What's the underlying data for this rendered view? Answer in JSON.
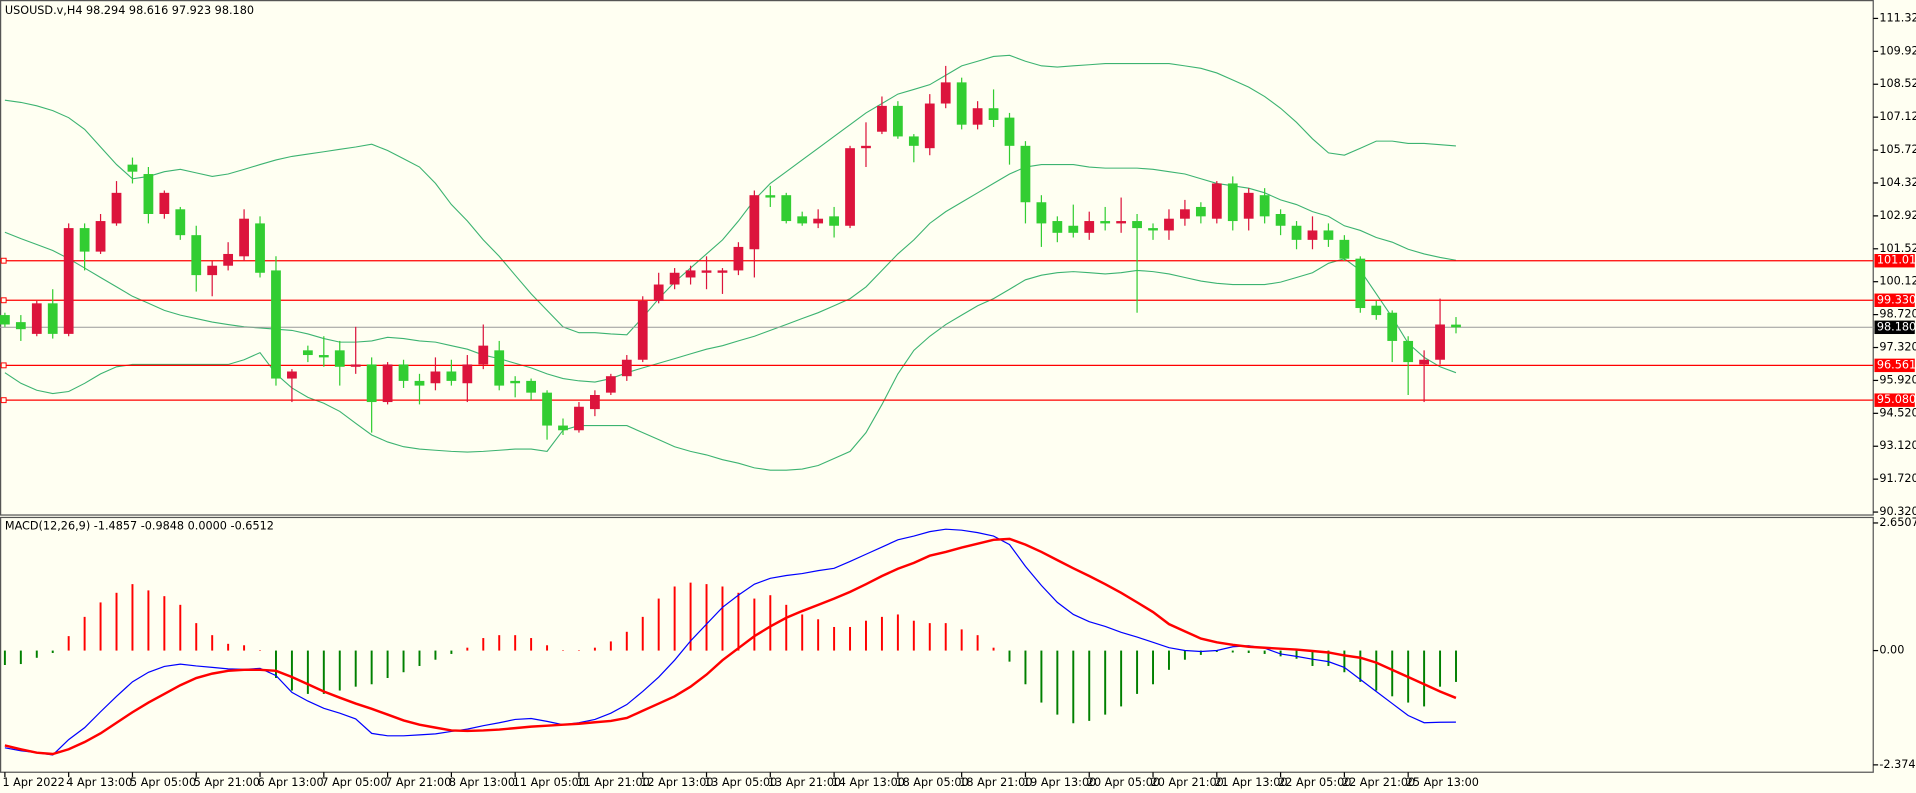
{
  "chart_data": [
    {
      "type": "candlestick",
      "title": "USOUSD.v,H4 98.294 98.616 97.923 98.180",
      "categories": [
        "1 Apr 2022",
        null,
        null,
        null,
        "4 Apr 13:00",
        null,
        null,
        null,
        "5 Apr 05:00",
        null,
        null,
        null,
        "5 Apr 21:00",
        null,
        null,
        null,
        "6 Apr 13:00",
        null,
        null,
        null,
        "7 Apr 05:00",
        null,
        null,
        null,
        "7 Apr 21:00",
        null,
        null,
        null,
        "8 Apr 13:00",
        null,
        null,
        null,
        "11 Apr 05:00",
        null,
        null,
        null,
        "11 Apr 21:00",
        null,
        null,
        null,
        "12 Apr 13:00",
        null,
        null,
        null,
        "13 Apr 05:00",
        null,
        null,
        null,
        "13 Apr 21:00",
        null,
        null,
        null,
        "14 Apr 13:00",
        null,
        null,
        null,
        "18 Apr 05:00",
        null,
        null,
        null,
        "18 Apr 21:00",
        null,
        null,
        null,
        "19 Apr 13:00",
        null,
        null,
        null,
        "20 Apr 05:00",
        null,
        null,
        null,
        "20 Apr 21:00",
        null,
        null,
        null,
        "21 Apr 13:00",
        null,
        null,
        null,
        "22 Apr 05:00",
        null,
        null,
        null,
        "22 Apr 21:00",
        null,
        null,
        null,
        "25 Apr 13:00",
        null,
        null,
        null
      ],
      "open": [
        98.7,
        98.4,
        97.9,
        99.2,
        97.9,
        102.4,
        101.4,
        102.6,
        105.1,
        104.7,
        103.0,
        103.2,
        102.1,
        100.4,
        100.8,
        101.2,
        102.6,
        100.6,
        96.0,
        97.2,
        97.0,
        97.2,
        96.5,
        96.6,
        95.0,
        96.6,
        95.9,
        95.8,
        96.3,
        95.8,
        96.6,
        97.2,
        95.9,
        95.9,
        95.4,
        94.0,
        93.8,
        94.7,
        95.4,
        96.1,
        96.8,
        99.3,
        100.0,
        100.3,
        100.5,
        100.5,
        100.6,
        101.5,
        103.8,
        103.8,
        102.9,
        102.6,
        102.9,
        102.5,
        105.8,
        106.5,
        107.6,
        106.3,
        105.8,
        107.7,
        108.6,
        106.8,
        107.5,
        107.1,
        105.9,
        103.5,
        102.7,
        102.5,
        102.2,
        102.7,
        102.6,
        102.7,
        102.4,
        102.3,
        102.8,
        103.3,
        102.8,
        104.3,
        102.8,
        103.8,
        103.0,
        102.5,
        101.9,
        102.3,
        101.9,
        101.1,
        99.1,
        98.8,
        97.6,
        96.6,
        96.8,
        98.294
      ],
      "high": [
        98.8,
        98.7,
        99.3,
        99.8,
        102.6,
        102.6,
        103.0,
        104.4,
        105.4,
        105.0,
        104.0,
        103.3,
        102.5,
        101.0,
        101.8,
        103.2,
        102.9,
        101.2,
        96.4,
        97.4,
        97.8,
        97.6,
        98.2,
        96.9,
        96.7,
        96.8,
        96.2,
        96.9,
        96.8,
        97.0,
        98.3,
        97.6,
        96.1,
        96.0,
        95.5,
        94.3,
        95.0,
        95.5,
        96.2,
        97.0,
        99.5,
        100.5,
        100.7,
        100.8,
        101.2,
        100.7,
        101.8,
        104.0,
        104.2,
        103.9,
        103.1,
        103.2,
        103.3,
        105.9,
        106.9,
        108.0,
        107.8,
        106.4,
        108.1,
        109.3,
        108.8,
        107.8,
        108.3,
        107.3,
        106.1,
        103.8,
        102.9,
        103.4,
        103.1,
        103.3,
        103.7,
        103.0,
        102.6,
        103.2,
        103.6,
        103.5,
        104.4,
        104.6,
        104.1,
        104.1,
        103.2,
        102.7,
        102.9,
        102.6,
        102.1,
        101.2,
        99.3,
        98.9,
        97.8,
        97.2,
        99.4,
        98.616
      ],
      "low": [
        98.2,
        97.6,
        97.8,
        97.7,
        97.8,
        100.6,
        101.3,
        102.5,
        104.3,
        102.6,
        102.8,
        101.9,
        99.7,
        99.5,
        100.6,
        101.0,
        100.3,
        95.7,
        95.0,
        96.7,
        96.5,
        95.7,
        96.2,
        93.7,
        94.9,
        95.6,
        94.9,
        95.5,
        95.7,
        95.0,
        96.4,
        95.5,
        95.2,
        95.1,
        93.4,
        93.6,
        93.7,
        94.4,
        95.3,
        95.9,
        96.7,
        99.2,
        99.8,
        100.0,
        99.8,
        99.6,
        100.4,
        100.3,
        103.3,
        102.6,
        102.5,
        102.4,
        102.0,
        102.4,
        105.0,
        106.4,
        106.2,
        105.2,
        105.5,
        107.5,
        106.6,
        106.6,
        106.7,
        105.1,
        102.6,
        101.6,
        101.8,
        102.0,
        101.9,
        102.3,
        102.2,
        98.8,
        101.9,
        101.9,
        102.5,
        102.6,
        102.6,
        102.3,
        102.3,
        102.6,
        102.1,
        101.5,
        101.5,
        101.6,
        101.0,
        98.8,
        98.5,
        96.7,
        95.3,
        95.0,
        96.6,
        97.923
      ],
      "close": [
        98.3,
        98.1,
        99.2,
        97.9,
        102.4,
        101.4,
        102.7,
        103.9,
        104.8,
        103.0,
        103.9,
        102.1,
        100.4,
        100.8,
        101.3,
        102.8,
        100.5,
        96.0,
        96.3,
        97.0,
        96.9,
        96.5,
        96.6,
        95.0,
        96.6,
        95.9,
        95.7,
        96.3,
        95.9,
        96.6,
        97.4,
        95.7,
        95.8,
        95.4,
        94.0,
        93.8,
        94.8,
        95.3,
        96.1,
        96.8,
        99.3,
        100.0,
        100.5,
        100.6,
        100.6,
        100.6,
        101.6,
        103.8,
        103.7,
        102.7,
        102.6,
        102.8,
        102.5,
        105.8,
        105.9,
        107.6,
        106.3,
        105.9,
        107.7,
        108.6,
        106.8,
        107.5,
        107.0,
        105.9,
        103.5,
        102.6,
        102.2,
        102.2,
        102.7,
        102.6,
        102.7,
        102.4,
        102.3,
        102.8,
        103.2,
        102.9,
        104.3,
        102.7,
        103.9,
        102.9,
        102.5,
        101.9,
        102.3,
        101.9,
        101.1,
        99.0,
        98.7,
        97.6,
        96.7,
        96.8,
        98.3,
        98.18
      ],
      "up_color": "#dc143c",
      "down_color": "#32cd32",
      "series": [
        {
          "color": "#3cb371",
          "values": [
            107.84,
            107.75,
            107.6,
            107.4,
            107.1,
            106.6,
            105.85,
            105.1,
            104.5,
            104.6,
            104.8,
            104.9,
            104.75,
            104.6,
            104.7,
            104.9,
            105.1,
            105.3,
            105.45,
            105.55,
            105.65,
            105.75,
            105.85,
            105.97,
            105.7,
            105.35,
            105.0,
            104.3,
            103.4,
            102.7,
            101.9,
            101.2,
            100.4,
            99.6,
            98.9,
            98.2,
            97.95,
            97.95,
            97.9,
            97.86,
            98.6,
            99.4,
            100.1,
            100.7,
            101.3,
            101.9,
            102.7,
            103.6,
            104.3,
            104.8,
            105.3,
            105.8,
            106.3,
            106.8,
            107.3,
            107.7,
            108.1,
            108.3,
            108.5,
            108.9,
            109.3,
            109.5,
            109.7,
            109.75,
            109.5,
            109.3,
            109.25,
            109.3,
            109.35,
            109.4,
            109.4,
            109.4,
            109.4,
            109.4,
            109.3,
            109.2,
            109.0,
            108.7,
            108.4,
            108.0,
            107.5,
            106.9,
            106.2,
            105.6,
            105.5,
            105.8,
            106.1,
            106.1,
            106.0,
            106.0,
            105.95,
            105.9
          ]
        },
        {
          "color": "#3cb371",
          "values": [
            102.22,
            101.95,
            101.7,
            101.45,
            101.1,
            100.7,
            100.3,
            99.9,
            99.5,
            99.2,
            98.9,
            98.7,
            98.55,
            98.4,
            98.3,
            98.2,
            98.15,
            98.1,
            98.05,
            97.9,
            97.7,
            97.55,
            97.55,
            97.6,
            97.75,
            97.7,
            97.6,
            97.55,
            97.4,
            97.25,
            97.0,
            96.85,
            96.65,
            96.45,
            96.2,
            96.0,
            95.9,
            95.85,
            96.0,
            96.25,
            96.45,
            96.65,
            96.85,
            97.05,
            97.25,
            97.4,
            97.6,
            97.8,
            98.05,
            98.3,
            98.55,
            98.8,
            99.1,
            99.4,
            99.9,
            100.6,
            101.3,
            101.9,
            102.6,
            103.1,
            103.5,
            103.9,
            104.3,
            104.7,
            105.0,
            105.1,
            105.1,
            105.1,
            105.0,
            104.95,
            104.95,
            104.95,
            104.9,
            104.8,
            104.7,
            104.5,
            104.3,
            104.2,
            104.1,
            103.9,
            103.6,
            103.4,
            103.1,
            102.9,
            102.5,
            102.3,
            102.0,
            101.8,
            101.5,
            101.3,
            101.15,
            101.03
          ]
        },
        {
          "color": "#3cb371",
          "values": [
            96.25,
            95.8,
            95.5,
            95.36,
            95.45,
            95.8,
            96.2,
            96.5,
            96.6,
            96.6,
            96.6,
            96.6,
            96.6,
            96.6,
            96.6,
            96.8,
            97.1,
            96.2,
            95.6,
            95.2,
            94.95,
            94.6,
            94.1,
            93.6,
            93.3,
            93.1,
            93.0,
            92.95,
            92.9,
            92.87,
            92.9,
            92.95,
            93.0,
            93.0,
            92.9,
            93.8,
            94.0,
            94.0,
            94.0,
            94.0,
            93.7,
            93.4,
            93.1,
            92.9,
            92.75,
            92.55,
            92.4,
            92.2,
            92.1,
            92.1,
            92.15,
            92.3,
            92.6,
            92.9,
            93.7,
            94.9,
            96.2,
            97.2,
            97.8,
            98.3,
            98.7,
            99.1,
            99.4,
            99.8,
            100.2,
            100.4,
            100.5,
            100.55,
            100.5,
            100.45,
            100.5,
            100.6,
            100.55,
            100.45,
            100.3,
            100.15,
            100.05,
            100.0,
            100.0,
            100.0,
            100.1,
            100.3,
            100.5,
            100.9,
            101.1,
            100.6,
            99.6,
            98.6,
            97.5,
            96.9,
            96.5,
            96.25
          ]
        }
      ],
      "ylim": [
        90.22,
        112.0
      ],
      "yticks": [
        {
          "value": 111.32,
          "label": "111.320"
        },
        {
          "value": 109.92,
          "label": "109.920"
        },
        {
          "value": 108.52,
          "label": "108.520"
        },
        {
          "value": 107.12,
          "label": "107.120"
        },
        {
          "value": 105.72,
          "label": "105.720"
        },
        {
          "value": 104.32,
          "label": "104.320"
        },
        {
          "value": 102.92,
          "label": "102.920"
        },
        {
          "value": 101.52,
          "label": "101.520"
        },
        {
          "value": 100.12,
          "label": "100.120"
        },
        {
          "value": 98.72,
          "label": "98.720"
        },
        {
          "value": 97.32,
          "label": "97.320"
        },
        {
          "value": 95.92,
          "label": "95.920"
        },
        {
          "value": 94.52,
          "label": "94.520"
        },
        {
          "value": 93.12,
          "label": "93.120"
        },
        {
          "value": 91.72,
          "label": "91.720"
        },
        {
          "value": 90.32,
          "label": "90.320"
        }
      ],
      "hlines": [
        {
          "value": 101.013,
          "label": "101.013"
        },
        {
          "value": 99.33,
          "label": "99.330"
        },
        {
          "value": 96.561,
          "label": "96.561"
        },
        {
          "value": 95.08,
          "label": "95.080"
        }
      ],
      "hline_color": "#ff0000",
      "last_price": {
        "value": 98.18,
        "label": "98.180"
      }
    },
    {
      "type": "macd",
      "title": "MACD(12,26,9) -1.4857 -0.9848 0.0000 -0.6512",
      "histogram": {
        "up_color": "#ff0000",
        "down_color": "#008000",
        "values": [
          -0.3,
          -0.28,
          -0.15,
          -0.05,
          0.3,
          0.7,
          1.0,
          1.2,
          1.38,
          1.25,
          1.13,
          0.95,
          0.57,
          0.32,
          0.14,
          0.11,
          0.01,
          -0.57,
          -0.83,
          -0.9,
          -0.9,
          -0.83,
          -0.75,
          -0.7,
          -0.57,
          -0.45,
          -0.32,
          -0.19,
          -0.07,
          0.06,
          0.26,
          0.32,
          0.32,
          0.26,
          0.11,
          0.01,
          0.01,
          0.06,
          0.19,
          0.39,
          0.7,
          1.08,
          1.33,
          1.41,
          1.38,
          1.33,
          1.2,
          1.08,
          1.15,
          0.95,
          0.75,
          0.65,
          0.49,
          0.49,
          0.62,
          0.7,
          0.75,
          0.62,
          0.57,
          0.57,
          0.44,
          0.32,
          0.06,
          -0.23,
          -0.7,
          -1.08,
          -1.33,
          -1.51,
          -1.46,
          -1.33,
          -1.16,
          -0.9,
          -0.7,
          -0.4,
          -0.19,
          -0.09,
          -0.03,
          -0.04,
          -0.05,
          -0.07,
          -0.12,
          -0.17,
          -0.32,
          -0.32,
          -0.45,
          -0.65,
          -0.83,
          -0.95,
          -1.08,
          -1.16,
          -0.75,
          -0.6512
        ]
      },
      "series": [
        {
          "color": "#0000ff",
          "values": [
            -2.02,
            -2.08,
            -2.12,
            -2.17,
            -1.85,
            -1.6,
            -1.27,
            -0.95,
            -0.65,
            -0.45,
            -0.33,
            -0.28,
            -0.32,
            -0.35,
            -0.38,
            -0.39,
            -0.37,
            -0.52,
            -0.87,
            -1.05,
            -1.2,
            -1.3,
            -1.42,
            -1.72,
            -1.77,
            -1.77,
            -1.75,
            -1.73,
            -1.68,
            -1.63,
            -1.56,
            -1.5,
            -1.43,
            -1.41,
            -1.47,
            -1.54,
            -1.5,
            -1.43,
            -1.3,
            -1.12,
            -0.85,
            -0.55,
            -0.2,
            0.2,
            0.55,
            0.9,
            1.15,
            1.38,
            1.5,
            1.56,
            1.6,
            1.66,
            1.71,
            1.85,
            2.0,
            2.15,
            2.3,
            2.38,
            2.47,
            2.52,
            2.5,
            2.45,
            2.38,
            2.2,
            1.75,
            1.35,
            1.0,
            0.75,
            0.6,
            0.5,
            0.38,
            0.28,
            0.17,
            0.06,
            0.0,
            -0.02,
            0.0,
            0.08,
            0.1,
            0.05,
            -0.07,
            -0.12,
            -0.18,
            -0.23,
            -0.35,
            -0.6,
            -0.85,
            -1.1,
            -1.35,
            -1.5,
            -1.49,
            -1.4857
          ]
        },
        {
          "color": "#ff0000",
          "values": [
            -1.97,
            -2.05,
            -2.12,
            -2.15,
            -2.05,
            -1.9,
            -1.72,
            -1.5,
            -1.28,
            -1.08,
            -0.9,
            -0.72,
            -0.57,
            -0.48,
            -0.42,
            -0.4,
            -0.4,
            -0.42,
            -0.55,
            -0.7,
            -0.85,
            -0.98,
            -1.1,
            -1.21,
            -1.33,
            -1.45,
            -1.54,
            -1.6,
            -1.66,
            -1.67,
            -1.66,
            -1.64,
            -1.61,
            -1.58,
            -1.56,
            -1.54,
            -1.52,
            -1.49,
            -1.46,
            -1.4,
            -1.25,
            -1.1,
            -0.95,
            -0.75,
            -0.5,
            -0.2,
            0.05,
            0.3,
            0.5,
            0.68,
            0.82,
            0.95,
            1.08,
            1.22,
            1.38,
            1.55,
            1.7,
            1.82,
            1.97,
            2.05,
            2.14,
            2.22,
            2.3,
            2.32,
            2.2,
            2.05,
            1.88,
            1.71,
            1.55,
            1.38,
            1.2,
            1.0,
            0.8,
            0.55,
            0.4,
            0.25,
            0.17,
            0.12,
            0.08,
            0.06,
            0.04,
            0.02,
            -0.01,
            -0.04,
            -0.1,
            -0.15,
            -0.25,
            -0.4,
            -0.55,
            -0.7,
            -0.85,
            -0.9848
          ]
        }
      ],
      "ylim": [
        -2.527,
        2.752
      ],
      "yticks": [
        2.6507,
        {
          "value": 0,
          "label": "0.00"
        },
        -2.3742
      ]
    }
  ]
}
